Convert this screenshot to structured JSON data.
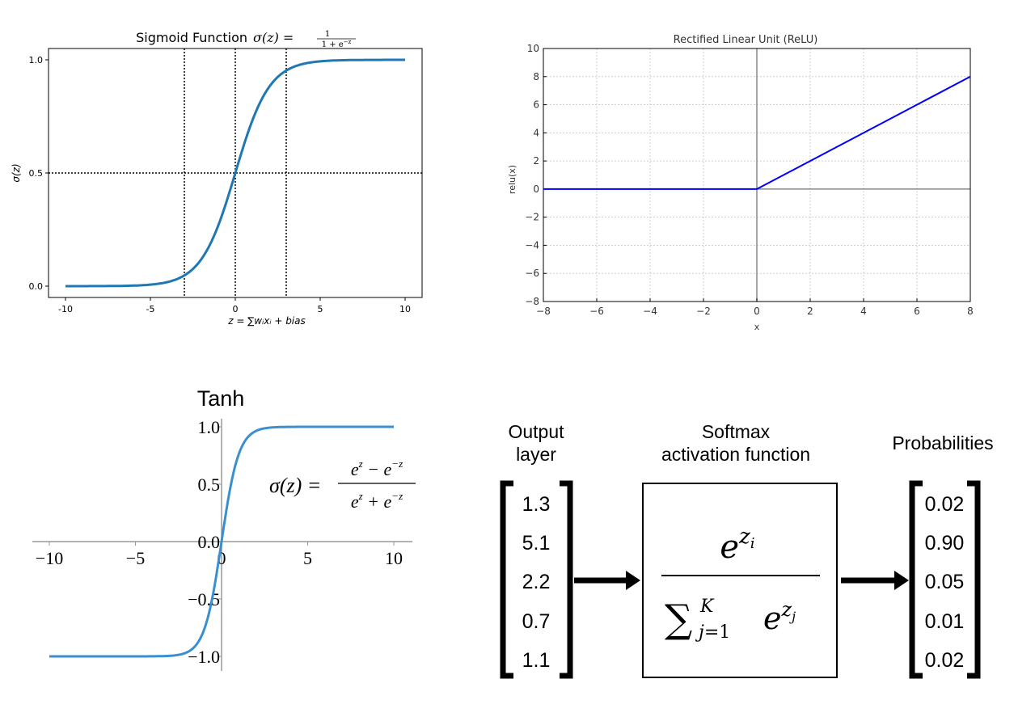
{
  "chart_data": [
    {
      "type": "line",
      "title": "Sigmoid Function",
      "title_formula": "σ(z) = 1/(1+e^−z)",
      "xlabel": "z = ∑wᵢxᵢ + bias",
      "ylabel": "σ(z)",
      "xlim": [
        -11,
        11
      ],
      "ylim": [
        -0.05,
        1.05
      ],
      "xticks": [
        -10,
        -5,
        0,
        5,
        10
      ],
      "xtick_labels": [
        "-10",
        "-5",
        "0",
        "5",
        "10"
      ],
      "yticks": [
        0.0,
        0.5,
        1.0
      ],
      "ytick_labels": [
        "0.0",
        "0.5",
        "1.0"
      ],
      "grid": false,
      "reference_lines": {
        "vertical": [
          -3,
          0,
          3
        ],
        "horizontal": [
          0.5
        ]
      },
      "series": [
        {
          "function": "sigmoid",
          "x_range": [
            -10,
            10
          ],
          "color": "#1f77b4"
        }
      ]
    },
    {
      "type": "line",
      "title": "Rectified Linear Unit (ReLU)",
      "xlabel": "x",
      "ylabel": "relu(x)",
      "xlim": [
        -8,
        8
      ],
      "ylim": [
        -8,
        10
      ],
      "xticks": [
        -8,
        -6,
        -4,
        -2,
        0,
        2,
        4,
        6,
        8
      ],
      "xtick_labels": [
        "−8",
        "−6",
        "−4",
        "−2",
        "0",
        "2",
        "4",
        "6",
        "8"
      ],
      "yticks": [
        -8,
        -6,
        -4,
        -2,
        0,
        2,
        4,
        6,
        8,
        10
      ],
      "ytick_labels": [
        "−8",
        "−6",
        "−4",
        "−2",
        "0",
        "2",
        "4",
        "6",
        "8",
        "10"
      ],
      "grid": true,
      "series": [
        {
          "function": "relu",
          "x": [
            -8,
            0,
            8
          ],
          "y": [
            0,
            0,
            8
          ],
          "color": "#0000ff"
        }
      ]
    },
    {
      "type": "line",
      "title": "Tanh",
      "formula_lhs": "σ(z) =",
      "formula_num": "e^z − e^−z",
      "formula_den": "e^z + e^−z",
      "xlim": [
        -10,
        10
      ],
      "ylim": [
        -1.1,
        1.1
      ],
      "xticks": [
        -10,
        -5,
        0,
        5,
        10
      ],
      "xtick_labels": [
        "−10",
        "−5",
        "0",
        "5",
        "10"
      ],
      "yticks": [
        -1.0,
        -0.5,
        0.0,
        0.5,
        1.0
      ],
      "ytick_labels": [
        "−1.0",
        "−0.5",
        "0.0",
        "0.5",
        "1.0"
      ],
      "grid": false,
      "series": [
        {
          "function": "tanh",
          "x_range": [
            -10,
            10
          ],
          "color": "#3a8fd0"
        }
      ]
    }
  ],
  "softmax": {
    "output_header": "Output\nlayer",
    "output_values": [
      "1.3",
      "5.1",
      "2.2",
      "0.7",
      "1.1"
    ],
    "function_header": "Softmax\nactivation function",
    "numerator": "e^{z_i}",
    "denominator": "∑_{j=1}^{K} e^{z_j}",
    "prob_header": "Probabilities",
    "prob_values": [
      "0.02",
      "0.90",
      "0.05",
      "0.01",
      "0.02"
    ]
  }
}
